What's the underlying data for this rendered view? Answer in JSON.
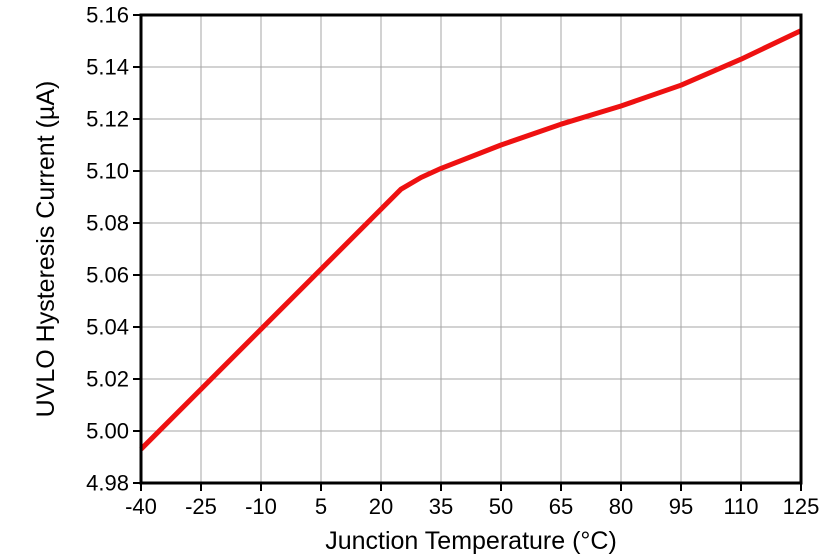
{
  "figure": {
    "background": "#ffffff"
  },
  "chart_data": {
    "type": "line",
    "title": "",
    "xlabel": "Junction Temperature (°C)",
    "ylabel": "UVLO Hysteresis Current (µA)",
    "xlim": [
      -40,
      125
    ],
    "ylim": [
      4.98,
      5.16
    ],
    "xticks": [
      -40,
      -25,
      -10,
      5,
      20,
      35,
      50,
      65,
      80,
      95,
      110,
      125
    ],
    "yticks": [
      4.98,
      5.0,
      5.02,
      5.04,
      5.06,
      5.08,
      5.1,
      5.12,
      5.14,
      5.16
    ],
    "ytick_decimals": 2,
    "grid": true,
    "legend_position": "none",
    "colors": {
      "line": "#ee1111",
      "grid": "#a6a6a6",
      "axis": "#000000",
      "text": "#000000"
    },
    "line_width": 5,
    "series": [
      {
        "name": "UVLO Hysteresis Current",
        "x": [
          -40,
          25,
          30,
          35,
          50,
          65,
          80,
          95,
          110,
          125
        ],
        "y": [
          4.993,
          5.093,
          5.0975,
          5.101,
          5.11,
          5.118,
          5.125,
          5.133,
          5.143,
          5.154
        ]
      }
    ]
  }
}
